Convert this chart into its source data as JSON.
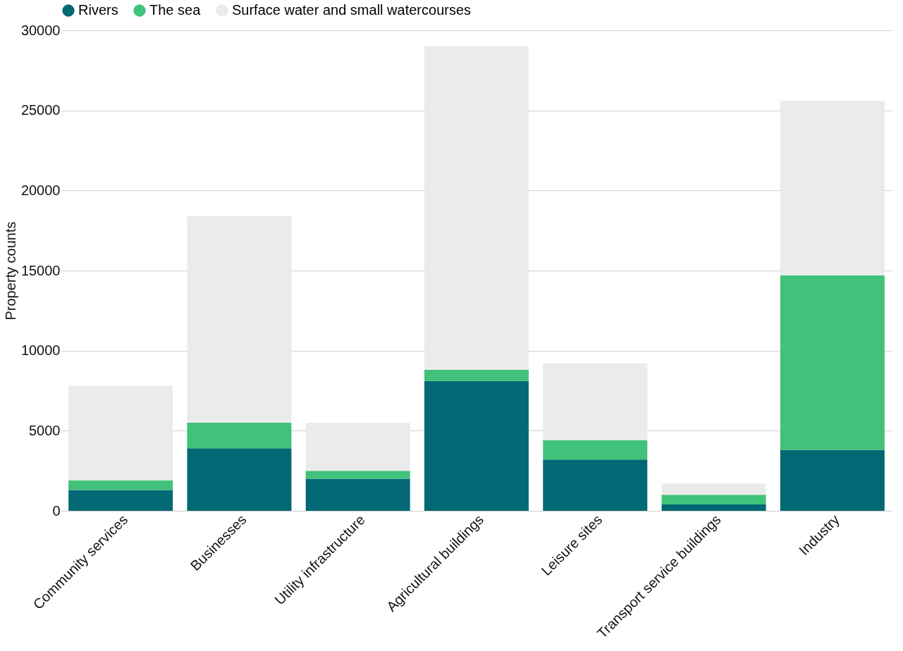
{
  "chart_data": {
    "type": "bar",
    "stacked": true,
    "ylabel": "Property counts",
    "categories": [
      "Community services",
      "Businesses",
      "Utility infrastructure",
      "Agricultural buildings",
      "Leisure sites",
      "Transport service buildings",
      "Industry"
    ],
    "series": [
      {
        "name": "Rivers",
        "color": "#026873",
        "values": [
          1300,
          3900,
          2000,
          8100,
          3200,
          400,
          3800
        ]
      },
      {
        "name": "The sea",
        "color": "#40c27a",
        "values": [
          600,
          1600,
          500,
          700,
          1200,
          600,
          10900
        ]
      },
      {
        "name": "Surface water and small watercourses",
        "color": "#ebebeb",
        "values": [
          5900,
          12900,
          3000,
          20200,
          4800,
          700,
          10900
        ]
      }
    ],
    "ylim": [
      0,
      30000
    ],
    "yticks": [
      0,
      5000,
      10000,
      15000,
      20000,
      25000,
      30000
    ],
    "grid": "y",
    "legend": "top"
  }
}
